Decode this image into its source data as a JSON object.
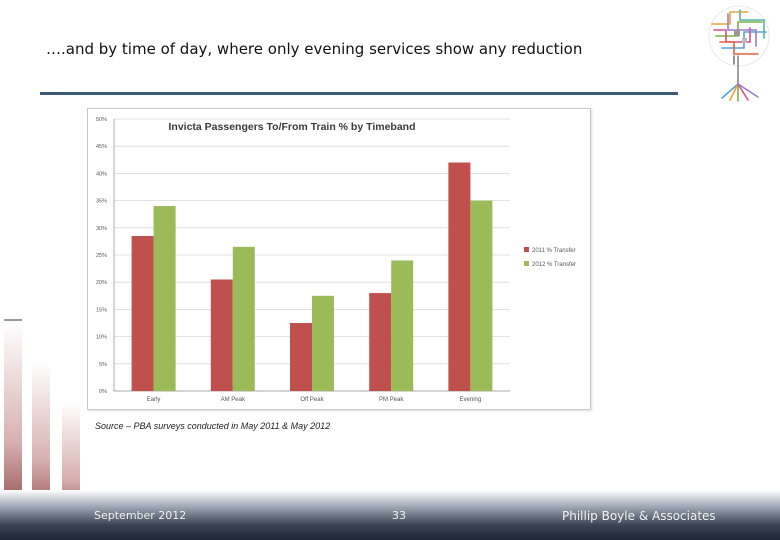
{
  "slide": {
    "heading": "….and by time of day, where only evening services show any reduction",
    "source": "Source – PBA surveys conducted in May 2011 & May 2012",
    "footer": {
      "date": "September 2012",
      "page": "33",
      "organization": "Phillip Boyle & Associates"
    }
  },
  "colors": {
    "series_2011": "#c0504d",
    "series_2012": "#9bbb59",
    "rule": "#3d5a7a"
  },
  "chart_data": {
    "type": "bar",
    "title": "Invicta Passengers To/From Train % by Timeband",
    "categories": [
      "Early",
      "AM Peak",
      "Off Peak",
      "PM Peak",
      "Evening"
    ],
    "series": [
      {
        "name": "2011 % Transfer",
        "values": [
          28.5,
          20.5,
          12.5,
          18.0,
          42.0
        ]
      },
      {
        "name": "2012 % Transfer",
        "values": [
          34.0,
          26.5,
          17.5,
          24.0,
          35.0
        ]
      }
    ],
    "y_ticks": [
      "0%",
      "5%",
      "10%",
      "15%",
      "20%",
      "25%",
      "30%",
      "35%",
      "40%",
      "45%",
      "50%"
    ],
    "ylim": [
      0,
      50
    ],
    "legend_position": "right",
    "grid": true
  }
}
